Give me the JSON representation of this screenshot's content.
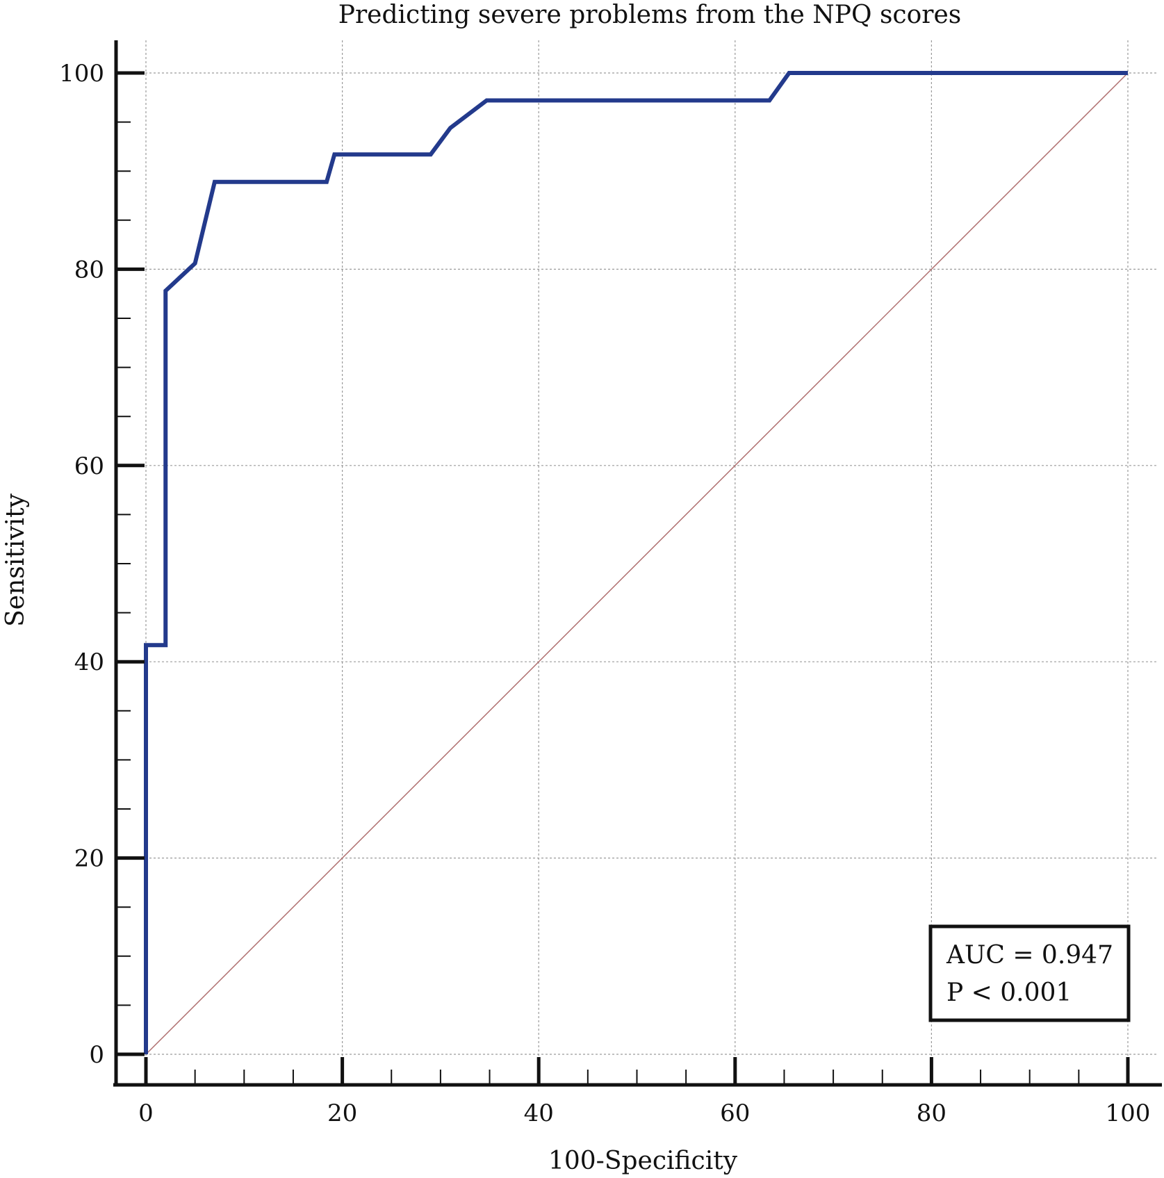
{
  "chart_data": {
    "type": "line",
    "title": "Predicting severe problems from the NPQ scores",
    "xlabel": "100-Specificity",
    "ylabel": "Sensitivity",
    "xlim": [
      0,
      100
    ],
    "ylim": [
      0,
      100
    ],
    "xticks": [
      0,
      20,
      40,
      60,
      80,
      100
    ],
    "yticks": [
      0,
      20,
      40,
      60,
      80,
      100
    ],
    "x_tick_labels": [
      "0",
      "20",
      "40",
      "60",
      "80",
      "100"
    ],
    "y_tick_labels": [
      "0",
      "20",
      "40",
      "60",
      "80",
      "100"
    ],
    "grid": true,
    "series": [
      {
        "color": "#233a8c",
        "x": [
          0,
          0,
          2,
          2,
          5,
          7,
          18.4,
          19.2,
          29,
          31,
          34.7,
          63.5,
          65.5,
          100
        ],
        "y": [
          0,
          41.7,
          41.7,
          77.8,
          80.6,
          88.9,
          88.9,
          91.7,
          91.7,
          94.4,
          97.2,
          97.2,
          100,
          100
        ]
      },
      {
        "color": "#b07070",
        "x": [
          0,
          100
        ],
        "y": [
          0,
          100
        ]
      }
    ],
    "annotations": [
      "AUC = 0.947",
      "P < 0.001"
    ],
    "annotation_position": "bottom-right"
  }
}
